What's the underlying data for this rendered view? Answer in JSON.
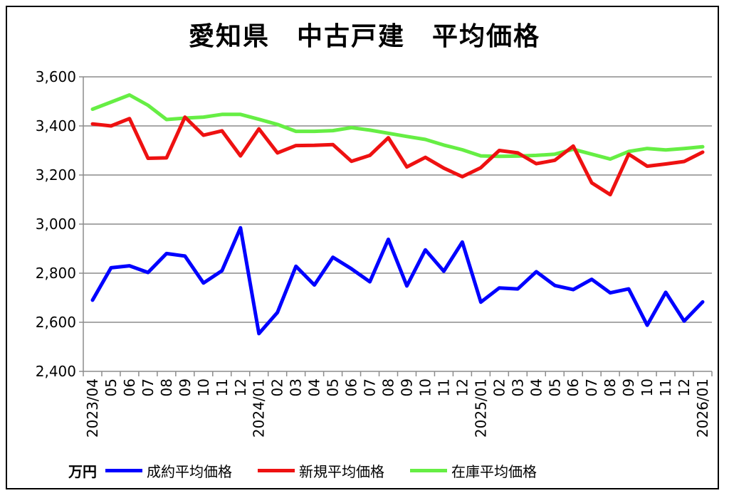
{
  "chart_data": {
    "type": "line",
    "title": "愛知県　中古戸建　平均価格",
    "unit": "万円",
    "ylim": [
      2400,
      3600
    ],
    "yticks": [
      "2,400",
      "2,600",
      "2,800",
      "3,000",
      "3,200",
      "3,400",
      "3,600"
    ],
    "ytick_values": [
      2400,
      2600,
      2800,
      3000,
      3200,
      3400,
      3600
    ],
    "categories": [
      "2023/04",
      "05",
      "06",
      "07",
      "08",
      "09",
      "10",
      "11",
      "12",
      "2024/01",
      "02",
      "03",
      "04",
      "05",
      "06",
      "07",
      "08",
      "09",
      "10",
      "11",
      "12",
      "2025/01",
      "02",
      "03",
      "04",
      "05",
      "06",
      "07",
      "08",
      "09",
      "10",
      "11",
      "12",
      "2026/01"
    ],
    "grid": true,
    "legend_position": "bottom",
    "series": [
      {
        "name": "成約平均価格",
        "color": "#0000ff",
        "values": [
          2690,
          2822,
          2830,
          2803,
          2880,
          2870,
          2760,
          2810,
          2985,
          2554,
          2640,
          2828,
          2752,
          2865,
          2818,
          2765,
          2938,
          2748,
          2895,
          2808,
          2927,
          2682,
          2740,
          2736,
          2806,
          2750,
          2733,
          2775,
          2720,
          2736,
          2588,
          2722,
          2605,
          2683
        ]
      },
      {
        "name": "新規平均価格",
        "color": "#ee1111",
        "values": [
          3408,
          3400,
          3430,
          3268,
          3270,
          3436,
          3362,
          3380,
          3278,
          3388,
          3290,
          3320,
          3321,
          3324,
          3256,
          3280,
          3352,
          3233,
          3272,
          3228,
          3193,
          3230,
          3300,
          3290,
          3246,
          3260,
          3318,
          3168,
          3120,
          3285,
          3236,
          3245,
          3255,
          3293
        ]
      },
      {
        "name": "在庫平均価格",
        "color": "#66ee44",
        "values": [
          3468,
          3497,
          3526,
          3484,
          3426,
          3432,
          3436,
          3447,
          3447,
          3427,
          3406,
          3378,
          3378,
          3381,
          3393,
          3383,
          3370,
          3357,
          3345,
          3322,
          3303,
          3278,
          3276,
          3277,
          3280,
          3285,
          3305,
          3285,
          3265,
          3296,
          3308,
          3302,
          3308,
          3315
        ]
      }
    ]
  }
}
